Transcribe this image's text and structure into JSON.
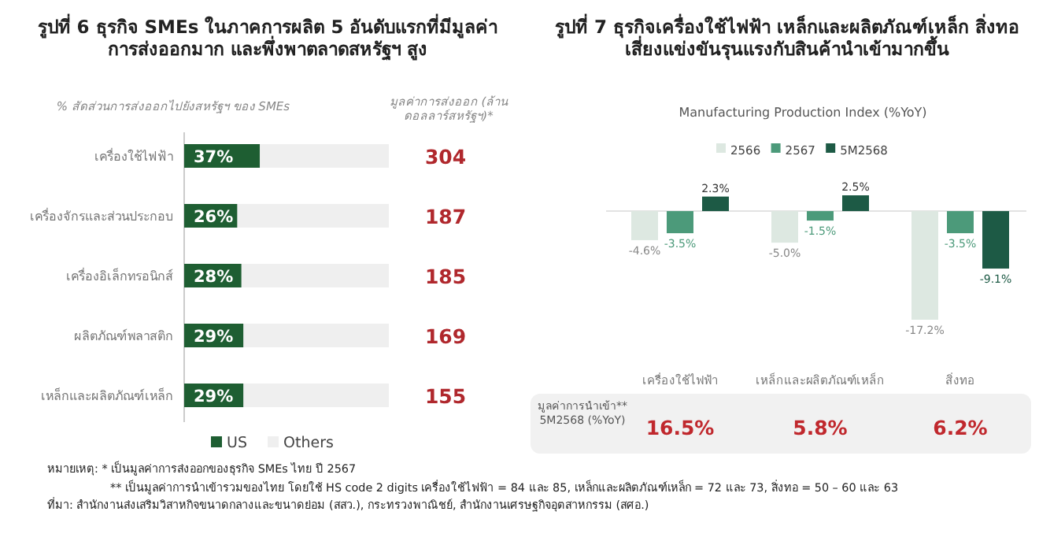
{
  "chart_data": [
    {
      "type": "bar",
      "orientation": "horizontal",
      "stacked": true,
      "title": "รูปที่ 6 ธุรกิจ SMEs ในภาคการผลิต 5 อันดับแรกที่มีมูลค่าการส่งออกมาก และพึ่งพาตลาดสหรัฐฯ สูง",
      "subtitle": "% สัดส่วนการส่งออกไปยังสหรัฐฯ ของ SMEs",
      "categories": [
        "เครื่องใช้ไฟฟ้า",
        "เครื่องจักรและส่วนประกอบ",
        "เครื่องอิเล็กทรอนิกส์",
        "ผลิตภัณฑ์พลาสติก",
        "เหล็กและผลิตภัณฑ์เหล็ก"
      ],
      "xlim": [
        0,
        100
      ],
      "tick_labels": "y",
      "legend": "bottom",
      "series": [
        {
          "name": "US",
          "color": "#1e5e32",
          "values": [
            37,
            26,
            28,
            29,
            29
          ],
          "value_labels": [
            "37%",
            "26%",
            "28%",
            "29%",
            "29%"
          ]
        },
        {
          "name": "Others",
          "color": "#efefef",
          "values": [
            63,
            74,
            72,
            71,
            71
          ]
        }
      ],
      "annotations": [
        "มูลค่าการส่งออก (ล้านดอลลาร์สหรัฐฯ)*",
        "304",
        "187",
        "185",
        "169",
        "155",
        "หมายเหตุ: * เป็นมูลค่าการส่งออกของธุรกิจ SMEs ไทย ปี 2567",
        "** เป็นมูลค่าการนำเข้ารวมของไทย โดยใช้ HS code 2 digits เครื่องใช้ไฟฟ้า = 84 และ 85, เหล็กและผลิตภัณฑ์เหล็ก = 72 และ 73, สิ่งทอ = 50 – 60 และ 63",
        "ที่มา: สำนักงานส่งเสริมวิสาหกิจขนาดกลางและขนาดย่อม (สสว.), กระทรวงพาณิชย์, สำนักงานเศรษฐกิจอุตสาหกรรม (สศอ.)"
      ]
    },
    {
      "type": "bar",
      "title": "รูปที่ 7 ธุรกิจเครื่องใช้ไฟฟ้า เหล็กและผลิตภัณฑ์เหล็ก สิ่งทอ เสี่ยงแข่งขันรุนแรงกับสินค้านำเข้ามากขึ้น",
      "subtitle": "Manufacturing Production Index (%YoY)",
      "categories": [
        "เครื่องใช้ไฟฟ้า",
        "เหล็กและผลิตภัณฑ์เหล็ก",
        "สิ่งทอ"
      ],
      "tick_labels": "x",
      "legend": "top",
      "series": [
        {
          "name": "2566",
          "color": "#dde8e1",
          "values": [
            -4.6,
            -5.0,
            -17.2
          ],
          "value_labels": [
            "-4.6%",
            "-5.0%",
            "-17.2%"
          ]
        },
        {
          "name": "2567",
          "color": "#4c9a7a",
          "values": [
            -3.5,
            -1.5,
            -3.5
          ],
          "value_labels": [
            "-3.5%",
            "-1.5%",
            "-3.5%"
          ]
        },
        {
          "name": "5M2568",
          "color": "#1d5a45",
          "values": [
            2.3,
            2.5,
            -9.1
          ],
          "value_labels": [
            "2.3%",
            "2.5%",
            "-9.1%"
          ]
        }
      ],
      "annotations": [
        "มูลค่าการนำเข้า** 5M2568 (%YoY)",
        "16.5%",
        "5.8%",
        "6.2%"
      ]
    }
  ]
}
